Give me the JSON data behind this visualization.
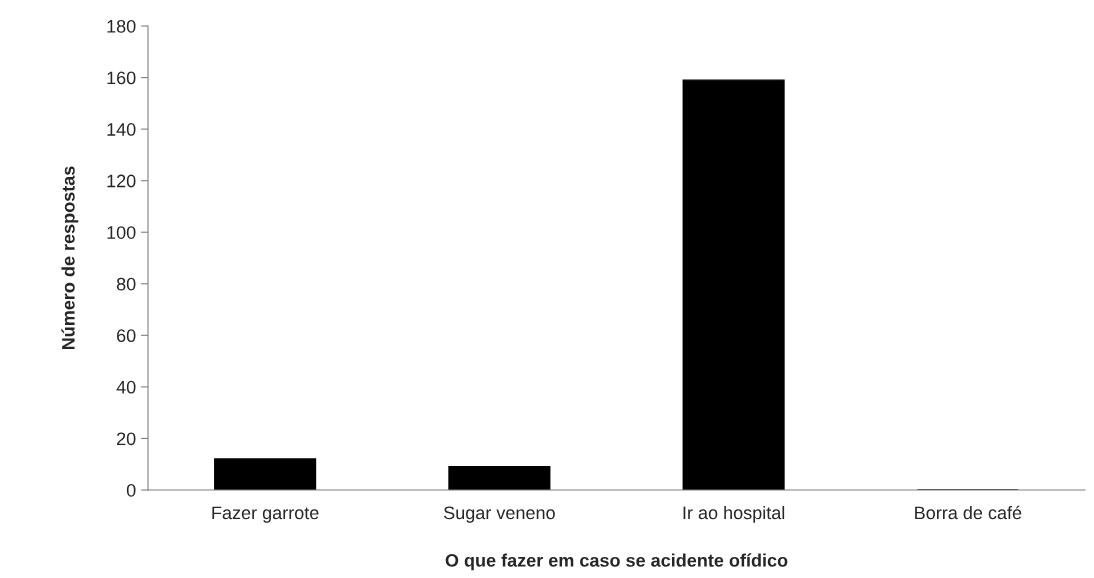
{
  "chart_data": {
    "type": "bar",
    "xlabel": "O que fazer em caso se acidente ofídico",
    "ylabel": "Número de respostas",
    "categories": [
      "Fazer garrote",
      "Sugar veneno",
      "Ir ao hospital",
      "Borra de café"
    ],
    "values": [
      12,
      9,
      159,
      0
    ],
    "color": "#000000",
    "ylim": [
      0,
      180
    ],
    "yticks": [
      0,
      20,
      40,
      60,
      80,
      100,
      120,
      140,
      160,
      180
    ],
    "grid": false
  }
}
